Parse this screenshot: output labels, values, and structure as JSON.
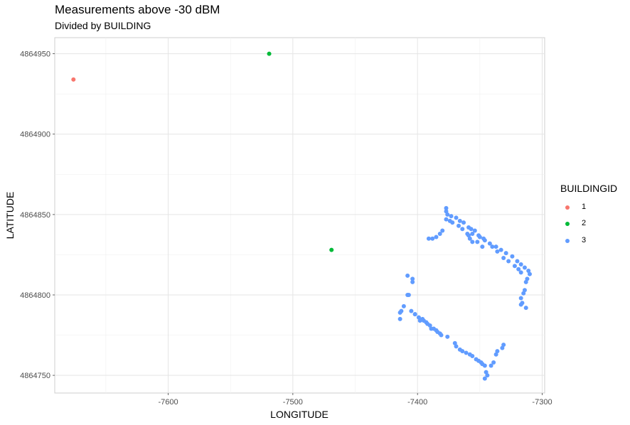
{
  "chart_data": {
    "type": "scatter",
    "title": "Measurements above -30 dBM",
    "subtitle": "Divided by BUILDING",
    "xlabel": "LONGITUDE",
    "ylabel": "LATITUDE",
    "xlim": [
      -7691,
      -7298
    ],
    "ylim": [
      4864739,
      4864960
    ],
    "x_ticks": [
      -7600,
      -7500,
      -7400,
      -7300
    ],
    "x_tick_labels": [
      "-7600",
      "-7500",
      "-7400",
      "-7300"
    ],
    "y_ticks": [
      4864750,
      4864800,
      4864850,
      4864900,
      4864950
    ],
    "y_tick_labels": [
      "4864750",
      "4864800",
      "4864850",
      "4864900",
      "4864950"
    ],
    "grid": true,
    "legend": {
      "title": "BUILDINGID",
      "position": "right"
    },
    "series": [
      {
        "name": "1",
        "color": "#f8766d",
        "points": [
          [
            -7676,
            4864934
          ]
        ]
      },
      {
        "name": "2",
        "color": "#00ba38",
        "points": [
          [
            -7519,
            4864950
          ],
          [
            -7469,
            4864828
          ]
        ]
      },
      {
        "name": "3",
        "color": "#619cff",
        "points": [
          [
            -7377,
            4864854
          ],
          [
            -7377,
            4864852
          ],
          [
            -7376,
            4864850
          ],
          [
            -7377,
            4864847
          ],
          [
            -7373,
            4864849
          ],
          [
            -7369,
            4864848
          ],
          [
            -7366,
            4864846
          ],
          [
            -7363,
            4864845
          ],
          [
            -7359,
            4864842
          ],
          [
            -7357,
            4864841
          ],
          [
            -7354,
            4864840
          ],
          [
            -7351,
            4864837
          ],
          [
            -7347,
            4864835
          ],
          [
            -7342,
            4864832
          ],
          [
            -7337,
            4864830
          ],
          [
            -7333,
            4864828
          ],
          [
            -7329,
            4864826
          ],
          [
            -7324,
            4864824
          ],
          [
            -7320,
            4864821
          ],
          [
            -7317,
            4864819
          ],
          [
            -7314,
            4864817
          ],
          [
            -7311,
            4864815
          ],
          [
            -7310,
            4864813
          ],
          [
            -7374,
            4864846
          ],
          [
            -7372,
            4864845
          ],
          [
            -7367,
            4864843
          ],
          [
            -7364,
            4864841
          ],
          [
            -7360,
            4864838
          ],
          [
            -7356,
            4864838
          ],
          [
            -7350,
            4864836
          ],
          [
            -7346,
            4864834
          ],
          [
            -7340,
            4864830
          ],
          [
            -7336,
            4864827
          ],
          [
            -7331,
            4864823
          ],
          [
            -7327,
            4864821
          ],
          [
            -7322,
            4864818
          ],
          [
            -7319,
            4864816
          ],
          [
            -7317,
            4864814
          ],
          [
            -7359,
            4864837
          ],
          [
            -7358,
            4864835
          ],
          [
            -7356,
            4864833
          ],
          [
            -7352,
            4864833
          ],
          [
            -7348,
            4864830
          ],
          [
            -7380,
            4864840
          ],
          [
            -7382,
            4864838
          ],
          [
            -7385,
            4864836
          ],
          [
            -7388,
            4864835
          ],
          [
            -7391,
            4864835
          ],
          [
            -7312,
            4864810
          ],
          [
            -7313,
            4864808
          ],
          [
            -7314,
            4864803
          ],
          [
            -7315,
            4864801
          ],
          [
            -7317,
            4864798
          ],
          [
            -7316,
            4864795
          ],
          [
            -7317,
            4864794
          ],
          [
            -7313,
            4864792
          ],
          [
            -7408,
            4864812
          ],
          [
            -7404,
            4864810
          ],
          [
            -7404,
            4864808
          ],
          [
            -7408,
            4864800
          ],
          [
            -7407,
            4864800
          ],
          [
            -7411,
            4864793
          ],
          [
            -7413,
            4864790
          ],
          [
            -7414,
            4864789
          ],
          [
            -7414,
            4864785
          ],
          [
            -7405,
            4864790
          ],
          [
            -7402,
            4864788
          ],
          [
            -7399,
            4864786
          ],
          [
            -7396,
            4864785
          ],
          [
            -7393,
            4864783
          ],
          [
            -7390,
            4864781
          ],
          [
            -7387,
            4864779
          ],
          [
            -7384,
            4864777
          ],
          [
            -7381,
            4864775
          ],
          [
            -7376,
            4864774
          ],
          [
            -7370,
            4864770
          ],
          [
            -7366,
            4864766
          ],
          [
            -7361,
            4864764
          ],
          [
            -7356,
            4864762
          ],
          [
            -7351,
            4864759
          ],
          [
            -7348,
            4864757
          ],
          [
            -7346,
            4864756
          ],
          [
            -7402,
            4864788
          ],
          [
            -7398,
            4864784
          ],
          [
            -7395,
            4864784
          ],
          [
            -7392,
            4864782
          ],
          [
            -7389,
            4864779
          ],
          [
            -7385,
            4864778
          ],
          [
            -7382,
            4864776
          ],
          [
            -7369,
            4864768
          ],
          [
            -7364,
            4864765
          ],
          [
            -7358,
            4864763
          ],
          [
            -7353,
            4864760
          ],
          [
            -7349,
            4864758
          ],
          [
            -7345,
            4864752
          ],
          [
            -7344,
            4864750
          ],
          [
            -7346,
            4864748
          ],
          [
            -7341,
            4864756
          ],
          [
            -7339,
            4864758
          ],
          [
            -7337,
            4864763
          ],
          [
            -7336,
            4864765
          ],
          [
            -7332,
            4864767
          ],
          [
            -7331,
            4864769
          ]
        ]
      }
    ]
  }
}
